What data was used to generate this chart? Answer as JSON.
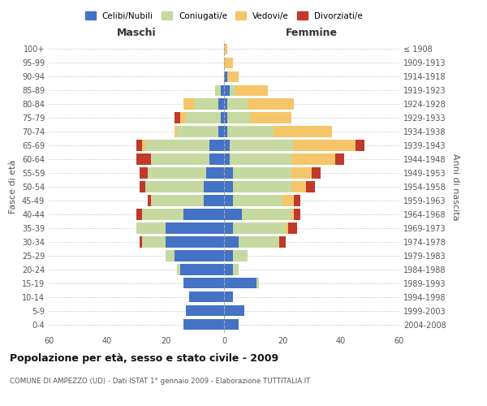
{
  "age_groups": [
    "0-4",
    "5-9",
    "10-14",
    "15-19",
    "20-24",
    "25-29",
    "30-34",
    "35-39",
    "40-44",
    "45-49",
    "50-54",
    "55-59",
    "60-64",
    "65-69",
    "70-74",
    "75-79",
    "80-84",
    "85-89",
    "90-94",
    "95-99",
    "100+"
  ],
  "birth_years": [
    "2004-2008",
    "1999-2003",
    "1994-1998",
    "1989-1993",
    "1984-1988",
    "1979-1983",
    "1974-1978",
    "1969-1973",
    "1964-1968",
    "1959-1963",
    "1954-1958",
    "1949-1953",
    "1944-1948",
    "1939-1943",
    "1934-1938",
    "1929-1933",
    "1924-1928",
    "1919-1923",
    "1914-1918",
    "1909-1913",
    "≤ 1908"
  ],
  "males": {
    "celibi": [
      14,
      13,
      12,
      14,
      15,
      17,
      20,
      20,
      14,
      7,
      7,
      6,
      5,
      5,
      2,
      1,
      2,
      1,
      0,
      0,
      0
    ],
    "coniugati": [
      0,
      0,
      0,
      0,
      1,
      3,
      8,
      10,
      14,
      18,
      20,
      20,
      20,
      22,
      14,
      12,
      8,
      2,
      0,
      0,
      0
    ],
    "vedovi": [
      0,
      0,
      0,
      0,
      0,
      0,
      0,
      0,
      0,
      0,
      0,
      0,
      0,
      1,
      1,
      2,
      4,
      0,
      0,
      0,
      0
    ],
    "divorziati": [
      0,
      0,
      0,
      0,
      0,
      0,
      1,
      0,
      2,
      1,
      2,
      3,
      5,
      2,
      0,
      2,
      0,
      0,
      0,
      0,
      0
    ]
  },
  "females": {
    "nubili": [
      5,
      7,
      3,
      11,
      3,
      3,
      5,
      3,
      6,
      3,
      3,
      3,
      2,
      2,
      1,
      1,
      1,
      2,
      1,
      0,
      0
    ],
    "coniugate": [
      0,
      0,
      0,
      1,
      2,
      5,
      14,
      18,
      17,
      17,
      20,
      20,
      21,
      22,
      16,
      8,
      7,
      2,
      0,
      0,
      0
    ],
    "vedove": [
      0,
      0,
      0,
      0,
      0,
      0,
      0,
      1,
      1,
      4,
      5,
      7,
      15,
      21,
      20,
      14,
      16,
      11,
      4,
      3,
      1
    ],
    "divorziate": [
      0,
      0,
      0,
      0,
      0,
      0,
      2,
      3,
      2,
      2,
      3,
      3,
      3,
      3,
      0,
      0,
      0,
      0,
      0,
      0,
      0
    ]
  },
  "colors": {
    "celibi": "#4472C4",
    "coniugati": "#C5D9A0",
    "vedovi": "#F5C56A",
    "divorziati": "#C0392B"
  },
  "title": "Popolazione per età, sesso e stato civile - 2009",
  "subtitle": "COMUNE DI AMPEZZO (UD) - Dati ISTAT 1° gennaio 2009 - Elaborazione TUTTITALIA.IT",
  "xlabel_left": "Maschi",
  "xlabel_right": "Femmine",
  "ylabel_left": "Fasce di età",
  "ylabel_right": "Anni di nascita",
  "xlim": 60,
  "legend_labels": [
    "Celibi/Nubili",
    "Coniugati/e",
    "Vedovi/e",
    "Divorziati/e"
  ]
}
